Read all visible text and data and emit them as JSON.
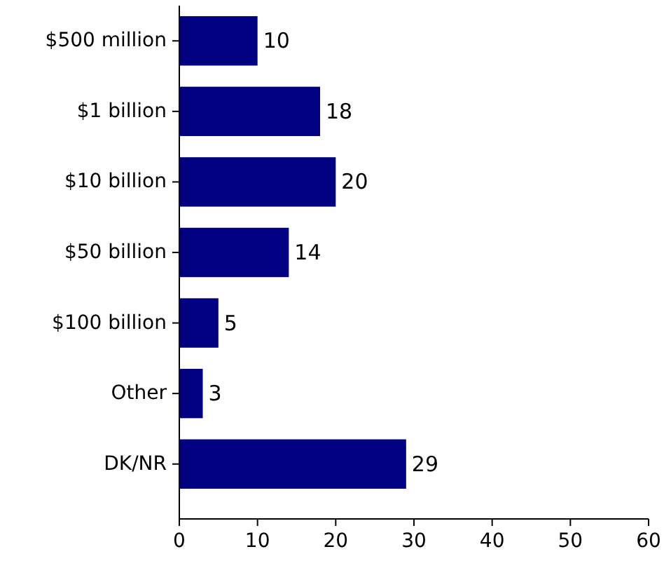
{
  "chart_data": {
    "type": "bar",
    "orientation": "horizontal",
    "categories": [
      "$500 million",
      "$1 billion",
      "$10 billion",
      "$50 billion",
      "$100 billion",
      "Other",
      "DK/NR"
    ],
    "values": [
      10,
      18,
      20,
      14,
      5,
      3,
      29
    ],
    "color": "#000080",
    "xlim": [
      0,
      60
    ],
    "xticks": [
      0,
      10,
      20,
      30,
      40,
      50,
      60
    ],
    "data_labels": true
  }
}
